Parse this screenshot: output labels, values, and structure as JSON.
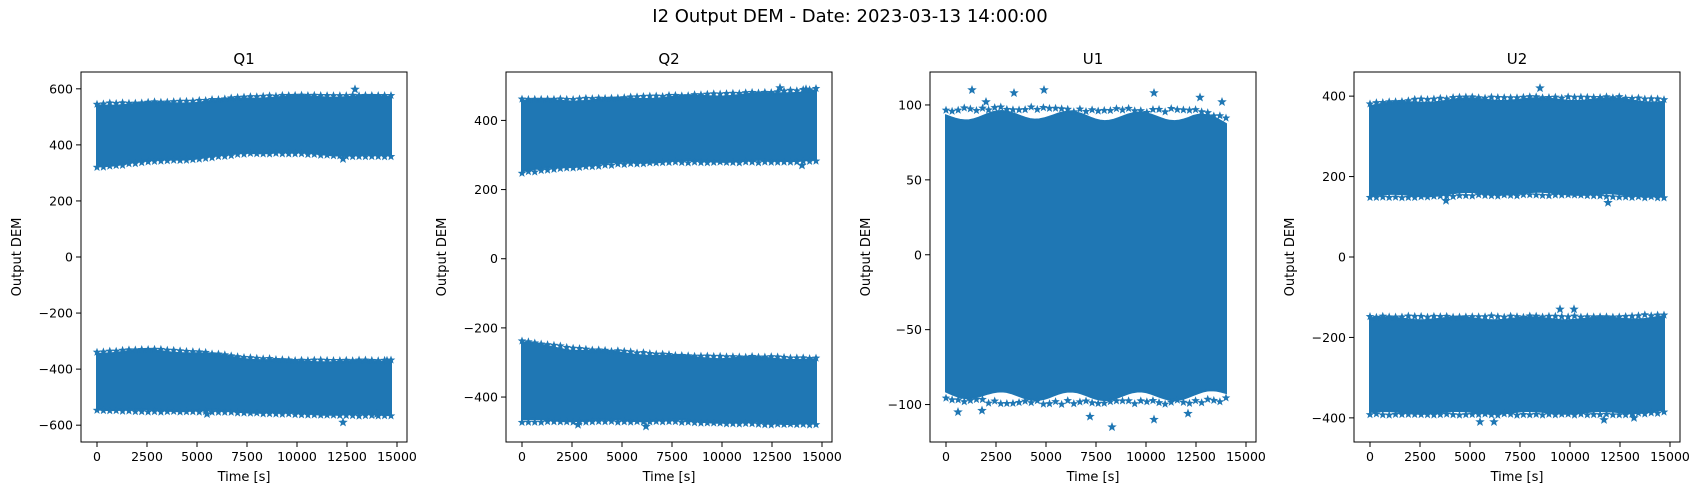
{
  "figure": {
    "suptitle": "I2 Output DEM - Date: 2023-03-13 14:00:00",
    "marker": "star",
    "color": "#1f77b4"
  },
  "chart_data": [
    {
      "type": "scatter",
      "title": "Q1",
      "xlabel": "Time [s]",
      "ylabel": "Output DEM",
      "xlim": [
        -800,
        15500
      ],
      "ylim": [
        -660,
        660
      ],
      "xticks": [
        0,
        2500,
        5000,
        7500,
        10000,
        12500,
        15000
      ],
      "xtick_labels": [
        "0",
        "2500",
        "5000",
        "7500",
        "10000",
        "12500",
        "15000"
      ],
      "yticks": [
        -600,
        -400,
        -200,
        0,
        200,
        400,
        600
      ],
      "ytick_labels": [
        "−600",
        "−400",
        "−200",
        "0",
        "200",
        "400",
        "600"
      ],
      "x_range": [
        0,
        14700
      ],
      "bands": [
        {
          "x": [
            0,
            2500,
            5000,
            7500,
            10000,
            12500,
            14700
          ],
          "lower": [
            320,
            340,
            350,
            370,
            370,
            360,
            360
          ],
          "upper": [
            545,
            550,
            555,
            570,
            575,
            575,
            575
          ]
        },
        {
          "x": [
            0,
            2500,
            5000,
            7500,
            10000,
            12500,
            14700
          ],
          "lower": [
            -545,
            -550,
            -550,
            -555,
            -560,
            -565,
            -565
          ],
          "upper": [
            -340,
            -330,
            -340,
            -360,
            -370,
            -370,
            -370
          ]
        }
      ],
      "outliers": [
        [
          12900,
          598
        ],
        [
          12300,
          350
        ],
        [
          12300,
          -590
        ],
        [
          5500,
          -560
        ],
        [
          14000,
          -560
        ],
        [
          14500,
          -370
        ]
      ]
    },
    {
      "type": "scatter",
      "title": "Q2",
      "xlabel": "Time [s]",
      "ylabel": "Output DEM",
      "xlim": [
        -800,
        15500
      ],
      "ylim": [
        -530,
        540
      ],
      "xticks": [
        0,
        2500,
        5000,
        7500,
        10000,
        12500,
        15000
      ],
      "xtick_labels": [
        "0",
        "2500",
        "5000",
        "7500",
        "10000",
        "12500",
        "15000"
      ],
      "yticks": [
        -400,
        -200,
        0,
        200,
        400
      ],
      "ytick_labels": [
        "−400",
        "−200",
        "0",
        "200",
        "400"
      ],
      "x_range": [
        0,
        14700
      ],
      "bands": [
        {
          "x": [
            0,
            2500,
            5000,
            7500,
            10000,
            12500,
            14700
          ],
          "lower": [
            250,
            265,
            275,
            280,
            280,
            280,
            285
          ],
          "upper": [
            460,
            460,
            465,
            470,
            475,
            480,
            490
          ]
        },
        {
          "x": [
            0,
            2500,
            5000,
            7500,
            10000,
            12500,
            14700
          ],
          "lower": [
            -470,
            -470,
            -470,
            -470,
            -475,
            -478,
            -478
          ],
          "upper": [
            -240,
            -260,
            -270,
            -280,
            -285,
            -285,
            -290
          ]
        }
      ],
      "outliers": [
        [
          12900,
          494
        ],
        [
          2800,
          -480
        ],
        [
          6200,
          -485
        ],
        [
          14200,
          490
        ],
        [
          14000,
          270
        ]
      ]
    },
    {
      "type": "scatter",
      "title": "U1",
      "xlabel": "Time [s]",
      "ylabel": "Output DEM",
      "xlim": [
        -800,
        15500
      ],
      "ylim": [
        -125,
        122
      ],
      "xticks": [
        0,
        2500,
        5000,
        7500,
        10000,
        12500,
        15000
      ],
      "xtick_labels": [
        "0",
        "2500",
        "5000",
        "7500",
        "10000",
        "12500",
        "15000"
      ],
      "yticks": [
        -100,
        -50,
        0,
        50,
        100
      ],
      "ytick_labels": [
        "−100",
        "−50",
        "0",
        "50",
        "100"
      ],
      "x_range": [
        0,
        14000
      ],
      "bands": [
        {
          "x": [
            0,
            2500,
            5000,
            7500,
            10000,
            12500,
            14000
          ],
          "lower": [
            -95,
            -97,
            -97,
            -97,
            -97,
            -97,
            -95
          ],
          "upper": [
            95,
            96,
            96,
            95,
            95,
            95,
            90
          ]
        }
      ],
      "outliers": [
        [
          1300,
          110
        ],
        [
          4900,
          110
        ],
        [
          10400,
          108
        ],
        [
          8300,
          -115
        ],
        [
          10400,
          -110
        ],
        [
          7200,
          -108
        ],
        [
          600,
          -105
        ],
        [
          1800,
          -104
        ],
        [
          12700,
          105
        ],
        [
          13800,
          102
        ],
        [
          3400,
          108
        ],
        [
          2000,
          102
        ],
        [
          12100,
          -106
        ]
      ]
    },
    {
      "type": "scatter",
      "title": "U2",
      "xlabel": "Time [s]",
      "ylabel": "Output DEM",
      "xlim": [
        -800,
        15500
      ],
      "ylim": [
        -460,
        460
      ],
      "xticks": [
        0,
        2500,
        5000,
        7500,
        10000,
        12500,
        15000
      ],
      "xtick_labels": [
        "0",
        "2500",
        "5000",
        "7500",
        "10000",
        "12500",
        "15000"
      ],
      "yticks": [
        -400,
        -200,
        0,
        200,
        400
      ],
      "ytick_labels": [
        "−400",
        "−200",
        "0",
        "200",
        "400"
      ],
      "x_range": [
        0,
        14700
      ],
      "bands": [
        {
          "x": [
            0,
            2500,
            5000,
            7500,
            10000,
            12500,
            14700
          ],
          "lower": [
            150,
            150,
            155,
            155,
            155,
            150,
            150
          ],
          "upper": [
            380,
            390,
            395,
            395,
            395,
            395,
            390
          ]
        },
        {
          "x": [
            0,
            2500,
            5000,
            7500,
            10000,
            12500,
            14700
          ],
          "lower": [
            -390,
            -390,
            -390,
            -390,
            -390,
            -390,
            -385
          ],
          "upper": [
            -150,
            -150,
            -150,
            -150,
            -150,
            -150,
            -145
          ]
        }
      ],
      "outliers": [
        [
          8500,
          420
        ],
        [
          11900,
          135
        ],
        [
          3800,
          140
        ],
        [
          9500,
          -130
        ],
        [
          10200,
          -130
        ],
        [
          5500,
          -410
        ],
        [
          6200,
          -410
        ],
        [
          11700,
          -405
        ],
        [
          13200,
          -400
        ]
      ]
    }
  ]
}
